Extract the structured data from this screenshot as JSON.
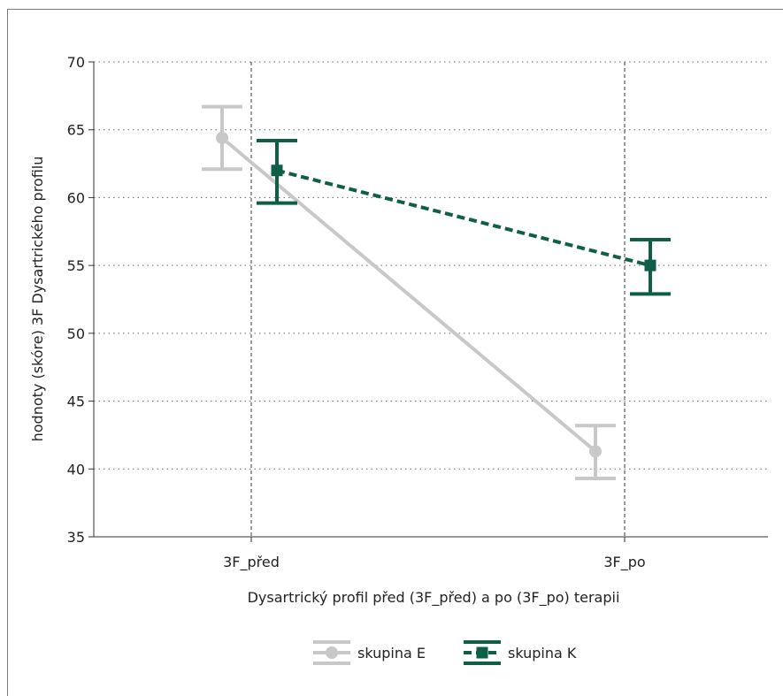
{
  "chart_data": {
    "type": "line",
    "title": "",
    "xlabel": "Dysartrický profil před (3F_před) a po (3F_po) terapii",
    "ylabel": "hodnoty (skóre) 3F Dysartrického profilu",
    "categories": [
      "3F_před",
      "3F_po"
    ],
    "ylim": [
      35,
      70
    ],
    "yticks": [
      35,
      40,
      45,
      50,
      55,
      60,
      65,
      70
    ],
    "grid": true,
    "legend_position": "bottom",
    "series": [
      {
        "name": "skupina E",
        "color": "#c8c8c8",
        "line_style": "solid",
        "marker": "circle",
        "values": [
          64.4,
          41.3
        ],
        "err_low": [
          62.1,
          39.3
        ],
        "err_high": [
          66.7,
          43.2
        ]
      },
      {
        "name": "skupina K",
        "color": "#0e5e48",
        "line_style": "dashed",
        "marker": "square",
        "values": [
          62.0,
          55.0
        ],
        "err_low": [
          59.6,
          52.9
        ],
        "err_high": [
          64.2,
          56.9
        ]
      }
    ]
  }
}
